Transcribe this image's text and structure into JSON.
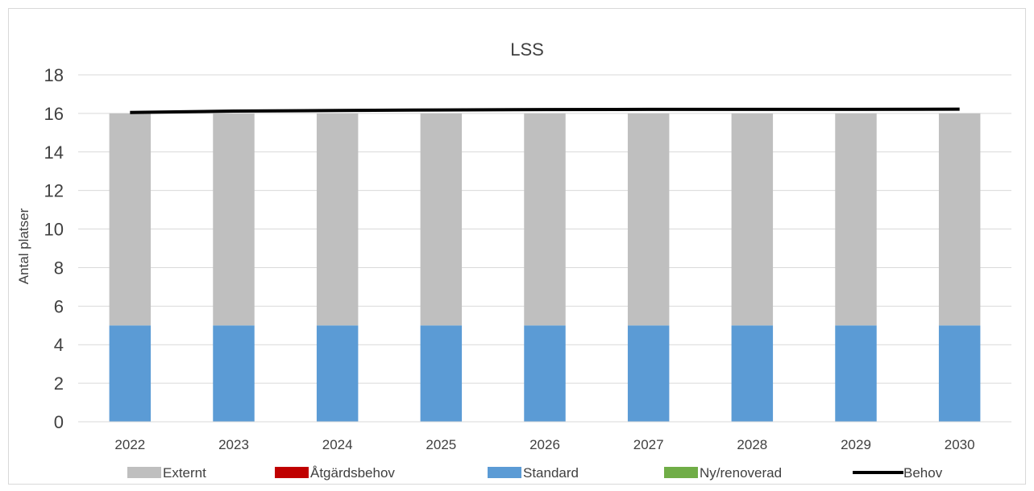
{
  "chart_data": {
    "type": "bar",
    "title": "LSS",
    "ylabel": "Antal platser",
    "xlabel": "",
    "categories": [
      "2022",
      "2023",
      "2024",
      "2025",
      "2026",
      "2027",
      "2028",
      "2029",
      "2030"
    ],
    "ylim": [
      0,
      18
    ],
    "yticks": [
      "0",
      "2",
      "4",
      "6",
      "8",
      "10",
      "12",
      "14",
      "16",
      "18"
    ],
    "grid": true,
    "legend_position": "bottom",
    "stacked": true,
    "series": [
      {
        "name": "Externt",
        "kind": "bar",
        "color": "#bfbfbf",
        "values": [
          11,
          11,
          11,
          11,
          11,
          11,
          11,
          11,
          11
        ]
      },
      {
        "name": "Åtgärdsbehov",
        "kind": "bar",
        "color": "#c00000",
        "values": [
          0,
          0,
          0,
          0,
          0,
          0,
          0,
          0,
          0
        ]
      },
      {
        "name": "Standard",
        "kind": "bar",
        "color": "#5b9bd5",
        "values": [
          5,
          5,
          5,
          5,
          5,
          5,
          5,
          5,
          5
        ]
      },
      {
        "name": "Ny/renoverad",
        "kind": "bar",
        "color": "#70ad47",
        "values": [
          0,
          0,
          0,
          0,
          0,
          0,
          0,
          0,
          0
        ]
      },
      {
        "name": "Behov",
        "kind": "line",
        "color": "#000000",
        "values": [
          16.05,
          16.12,
          16.15,
          16.18,
          16.2,
          16.21,
          16.21,
          16.21,
          16.22
        ]
      }
    ]
  }
}
